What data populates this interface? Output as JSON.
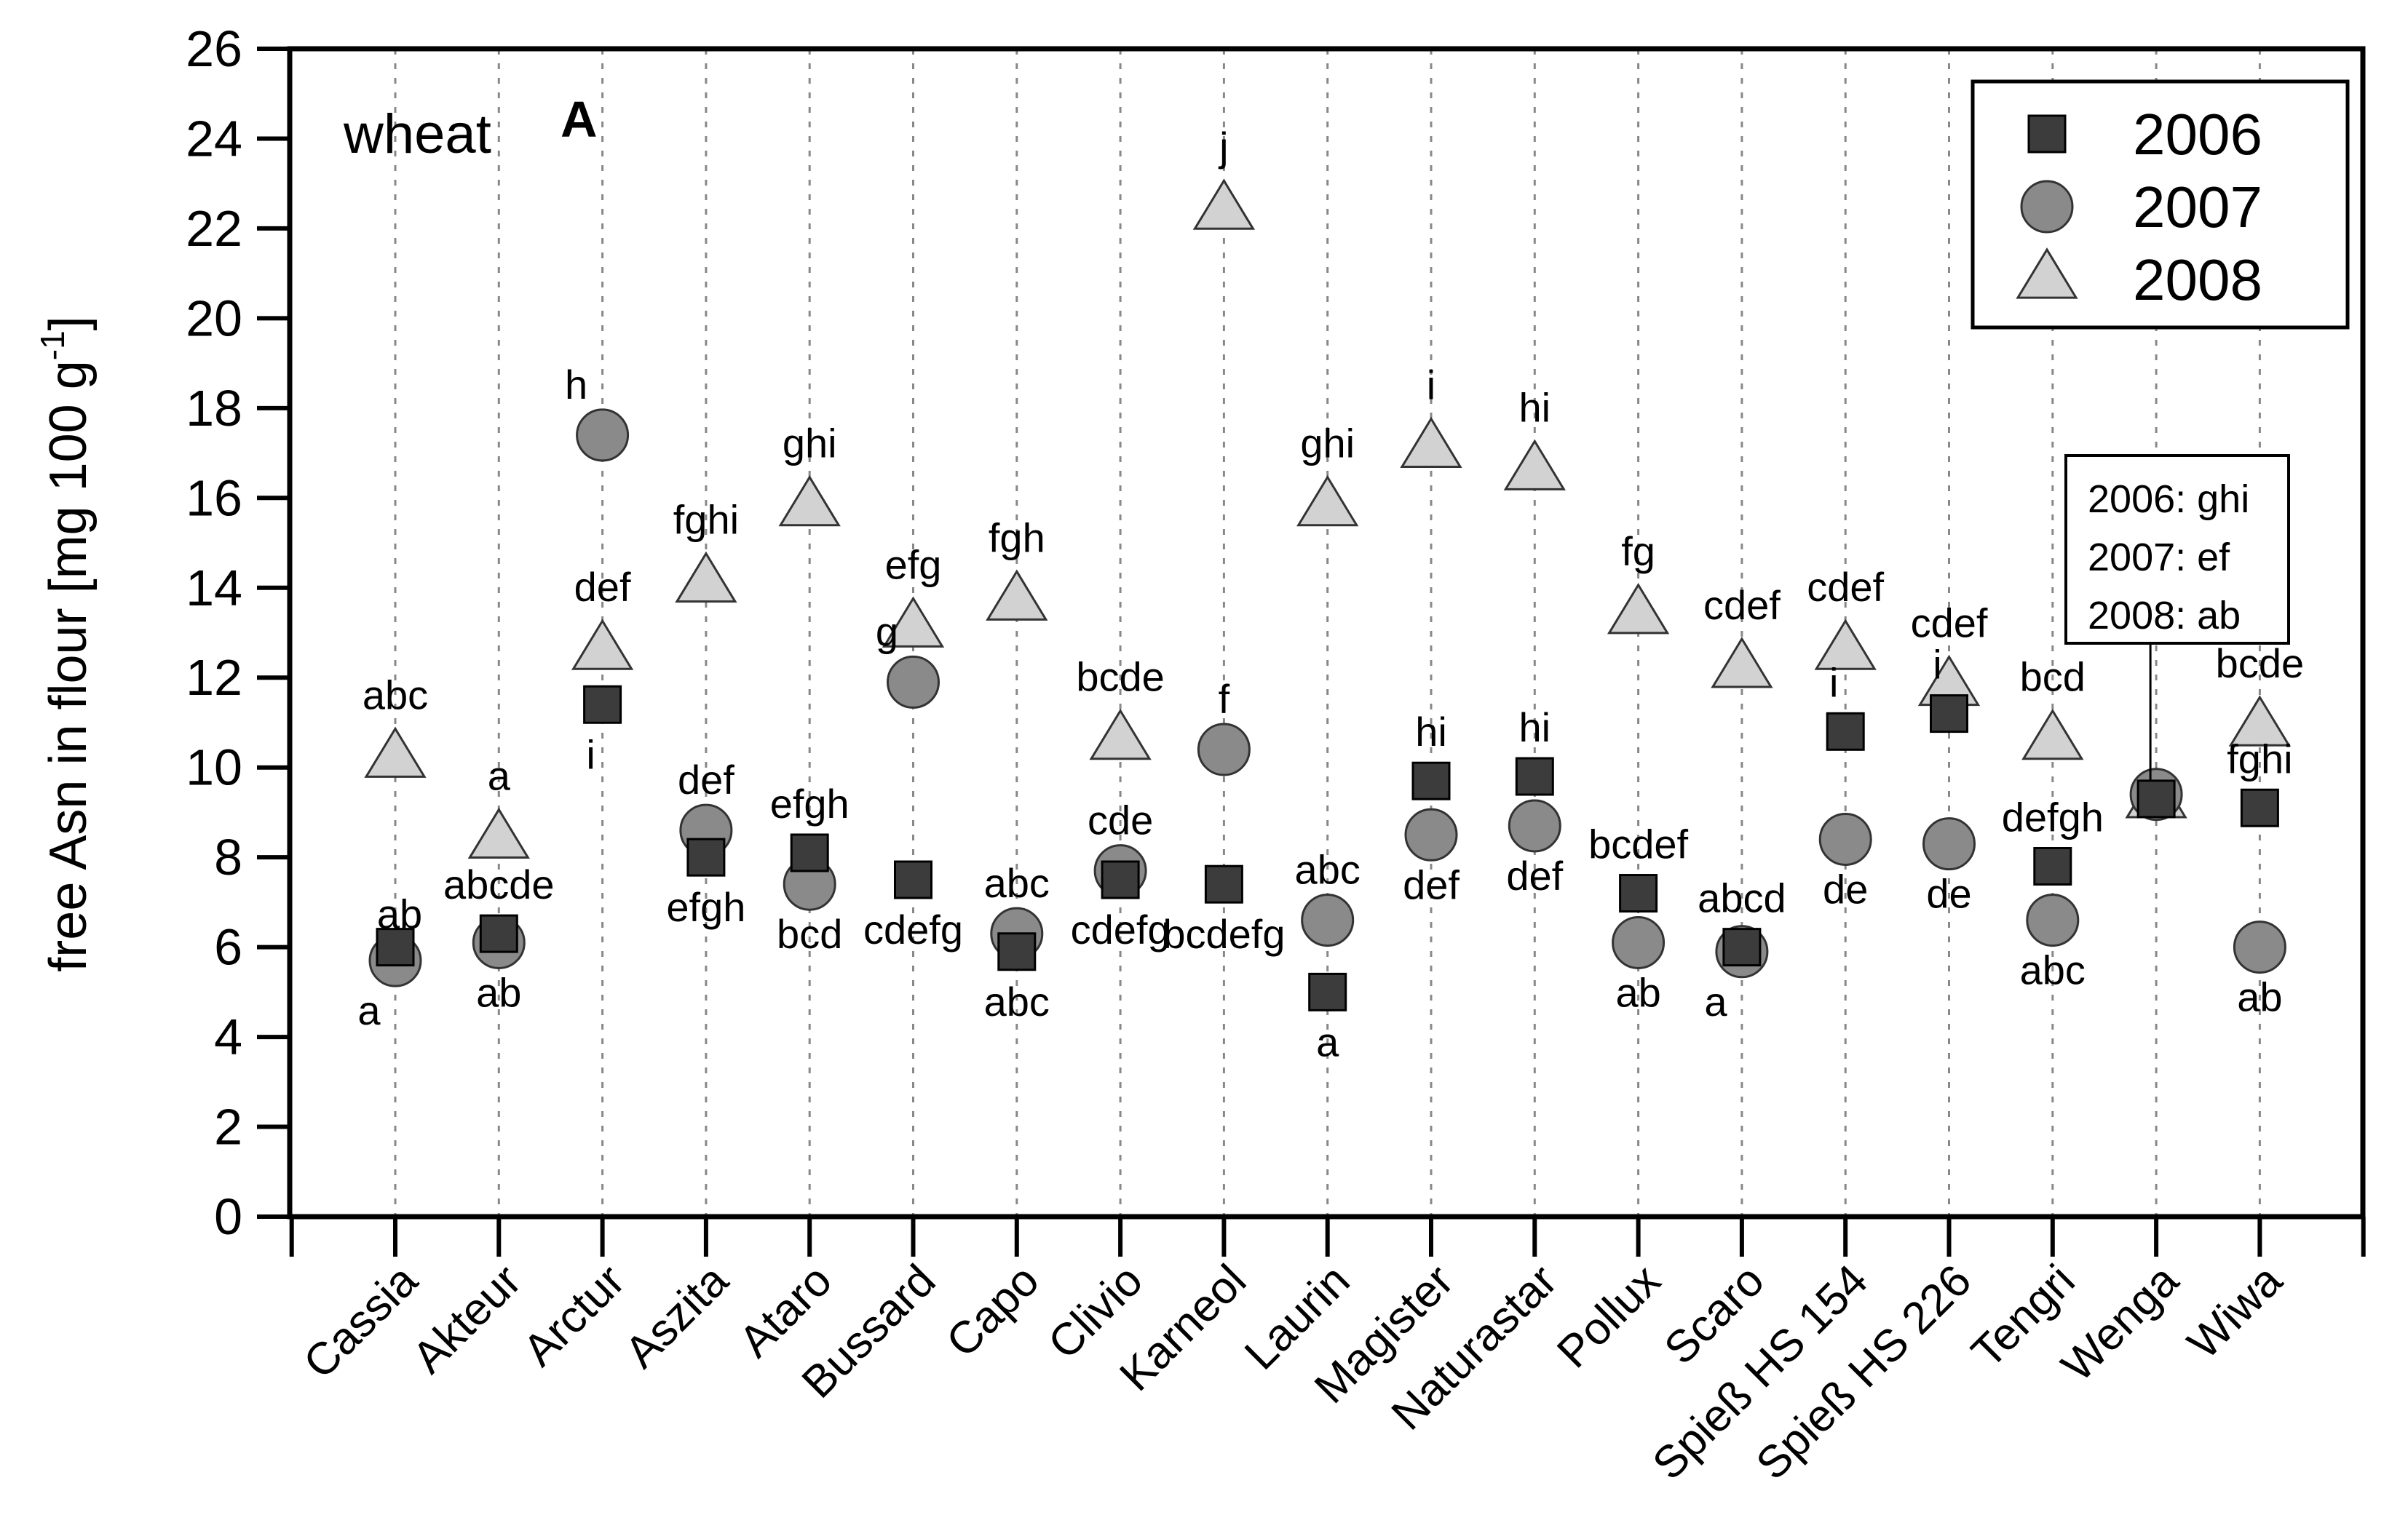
{
  "chart_data": {
    "type": "scatter",
    "panel_label": "A",
    "annotation": "wheat",
    "ylabel": "free Asn in flour [mg 100 g",
    "ylabel_sup": "-1",
    "ylabel_close": "]",
    "ylim": [
      0,
      26
    ],
    "yticks": [
      "0",
      "2",
      "4",
      "6",
      "8",
      "10",
      "12",
      "14",
      "16",
      "18",
      "20",
      "22",
      "24",
      "26"
    ],
    "grid": "vertical dotted lines at each category",
    "legend_position": "top-right",
    "categories": [
      "Cassia",
      "Akteur",
      "Arctur",
      "Aszita",
      "Ataro",
      "Bussard",
      "Capo",
      "Clivio",
      "Karneol",
      "Laurin",
      "Magister",
      "Naturastar",
      "Pollux",
      "Scaro",
      "Spieß HS 154",
      "Spieß HS 226",
      "Tengri",
      "Wenga",
      "Wiwa"
    ],
    "series": [
      {
        "name": "2006",
        "marker": "square",
        "color": "#3c3c3c",
        "values": [
          6.0,
          6.3,
          11.4,
          8.0,
          8.1,
          7.5,
          5.9,
          7.5,
          7.4,
          5.0,
          9.7,
          9.8,
          7.2,
          6.0,
          10.8,
          11.2,
          7.8,
          9.3,
          9.1
        ],
        "letters": [
          "",
          "abcde",
          "i",
          "efgh",
          "efgh",
          "cdefg",
          "abc",
          "cdefg",
          "bcdefg",
          "a",
          "hi",
          "hi",
          "bcdef",
          "abcd",
          "i",
          "i",
          "defgh",
          "",
          "fghi"
        ]
      },
      {
        "name": "2007",
        "marker": "circle",
        "color": "#8a8a8a",
        "values": [
          5.7,
          6.1,
          17.4,
          8.6,
          7.4,
          11.9,
          6.3,
          7.7,
          10.4,
          6.6,
          8.5,
          8.7,
          6.1,
          5.9,
          8.4,
          8.3,
          6.6,
          9.4,
          6.0
        ],
        "letters": [
          "a",
          "ab",
          "h",
          "def",
          "bcd",
          "g",
          "abc",
          "cde",
          "f",
          "abc",
          "def",
          "def",
          "ab",
          "a",
          "de",
          "de",
          "abc",
          "",
          "ab"
        ]
      },
      {
        "name": "2008",
        "marker": "triangle",
        "color": "#d2d2d2",
        "values": [
          10.2,
          8.4,
          12.6,
          14.1,
          15.8,
          13.1,
          13.7,
          10.6,
          22.4,
          15.8,
          17.1,
          16.6,
          13.4,
          12.2,
          12.6,
          11.8,
          10.6,
          9.3,
          10.9
        ],
        "letters": [
          "abc",
          "a",
          "def",
          "fghi",
          "ghi",
          "efg",
          "fgh",
          "bcde",
          "j",
          "ghi",
          "i",
          "hi",
          "fg",
          "cdef",
          "cdef",
          "cdef",
          "bcd",
          "",
          "bcde"
        ]
      }
    ],
    "extra_letters": [
      {
        "category": "Cassia",
        "text": "ab"
      }
    ],
    "callout": {
      "category": "Wenga",
      "lines": [
        "2006: ghi",
        "2007: ef",
        "2008: ab"
      ]
    }
  }
}
